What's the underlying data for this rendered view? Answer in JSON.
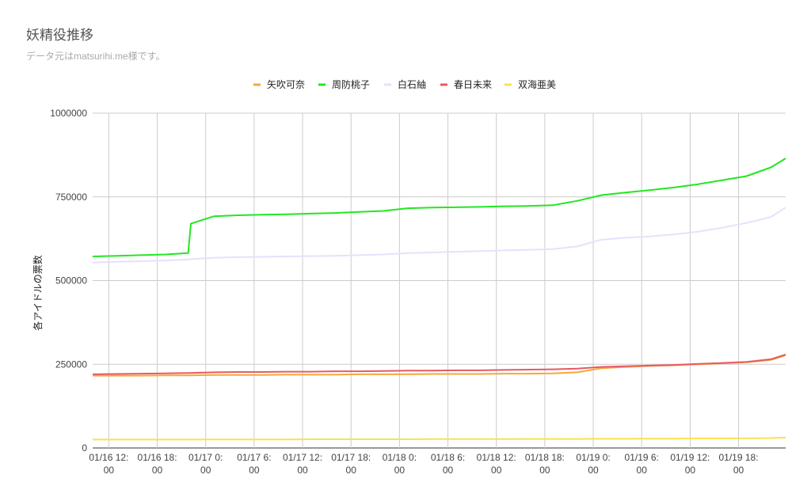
{
  "chart_data": {
    "type": "line",
    "title": "妖精役推移",
    "subtitle": "データ元はmatsurihi.me様です。",
    "y_label": "各アイドルの票数",
    "x": [
      "01/16 10:00",
      "01/16 13:00",
      "01/16 16:00",
      "01/16 19:00",
      "01/16 21:50",
      "01/16 22:10",
      "01/17 01:00",
      "01/17 04:00",
      "01/17 07:00",
      "01/17 10:00",
      "01/17 13:00",
      "01/17 16:00",
      "01/17 19:00",
      "01/17 22:00",
      "01/18 01:00",
      "01/18 04:00",
      "01/18 07:00",
      "01/18 10:00",
      "01/18 13:00",
      "01/18 16:00",
      "01/18 19:00",
      "01/18 22:00",
      "01/19 01:00",
      "01/19 04:00",
      "01/19 07:00",
      "01/19 10:00",
      "01/19 13:00",
      "01/19 16:00",
      "01/19 19:00",
      "01/19 22:00",
      "01/19 23:50"
    ],
    "series": [
      {
        "name": "矢吹可奈",
        "color": "#f5a83a",
        "values": [
          216000,
          216000,
          216000,
          217000,
          217000,
          217000,
          218000,
          218000,
          218000,
          219000,
          219000,
          219000,
          220000,
          220000,
          220000,
          221000,
          221000,
          221000,
          222000,
          222000,
          223000,
          226000,
          238000,
          242000,
          245000,
          247000,
          250000,
          253000,
          256000,
          263000,
          277000
        ]
      },
      {
        "name": "周防桃子",
        "color": "#22e722",
        "values": [
          572000,
          574000,
          576000,
          578000,
          582000,
          670000,
          692000,
          695000,
          697000,
          698000,
          700000,
          702000,
          705000,
          708000,
          716000,
          718000,
          719000,
          720000,
          722000,
          723000,
          725000,
          738000,
          755000,
          763000,
          770000,
          778000,
          788000,
          800000,
          812000,
          838000,
          865000
        ]
      },
      {
        "name": "白石紬",
        "color": "#e4e2fb",
        "values": [
          554000,
          556000,
          558000,
          560000,
          563000,
          564000,
          568000,
          570000,
          571000,
          572000,
          573000,
          574000,
          576000,
          578000,
          582000,
          584000,
          586000,
          588000,
          590000,
          592000,
          594000,
          602000,
          622000,
          628000,
          632000,
          638000,
          646000,
          658000,
          672000,
          690000,
          718000
        ]
      },
      {
        "name": "春日未来",
        "color": "#e85a62",
        "values": [
          220000,
          221000,
          222000,
          223000,
          224000,
          224000,
          226000,
          227000,
          227000,
          228000,
          228000,
          229000,
          229000,
          230000,
          231000,
          231000,
          232000,
          232000,
          233000,
          234000,
          235000,
          237000,
          242000,
          244000,
          246000,
          248000,
          251000,
          254000,
          257000,
          265000,
          279000
        ]
      },
      {
        "name": "双海亜美",
        "color": "#f7e34f",
        "values": [
          25000,
          25000,
          25000,
          25000,
          25000,
          25000,
          25500,
          25500,
          25500,
          25500,
          26000,
          26000,
          26000,
          26000,
          26000,
          26500,
          26500,
          26500,
          26500,
          27000,
          27000,
          27000,
          27500,
          27500,
          28000,
          28000,
          28500,
          28500,
          29000,
          29500,
          31000
        ]
      }
    ],
    "xlim": [
      "01/16 10:00",
      "01/19 23:50"
    ],
    "xticks": [
      "01/16 12:00",
      "01/16 18:00",
      "01/17 0:00",
      "01/17 6:00",
      "01/17 12:00",
      "01/17 18:00",
      "01/18 0:00",
      "01/18 6:00",
      "01/18 12:00",
      "01/18 18:00",
      "01/19 0:00",
      "01/19 6:00",
      "01/19 12:00",
      "01/19 18:00"
    ],
    "ylim": [
      0,
      1000000
    ],
    "yticks": [
      0,
      250000,
      500000,
      750000,
      1000000
    ],
    "grid": true,
    "legend": "top"
  }
}
